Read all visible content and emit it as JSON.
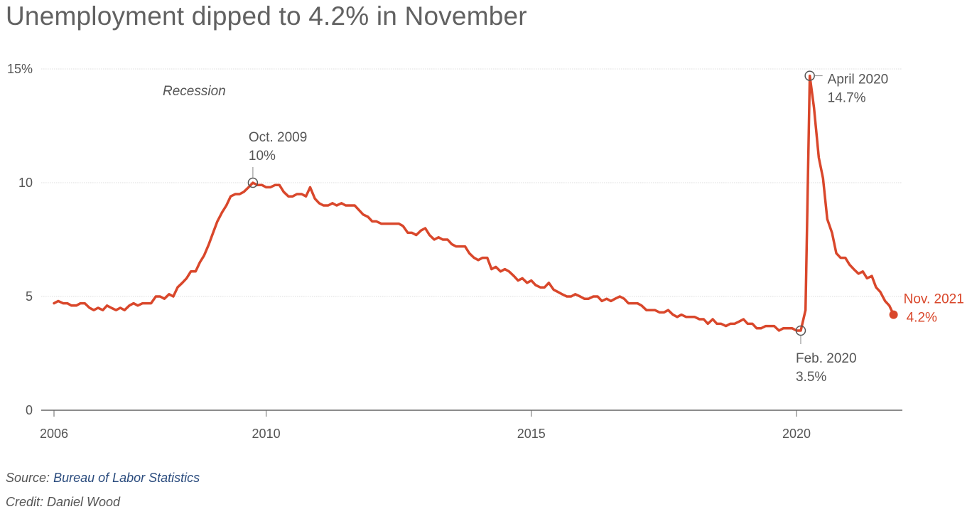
{
  "page": {
    "title": "Unemployment dipped to 4.2% in November",
    "source_prefix": "Source:",
    "source_link": "Bureau of Labor Statistics",
    "credit": "Credit: Daniel Wood"
  },
  "colors": {
    "line": "#d9472b",
    "annotation_text": "#555555",
    "highlight_text": "#d9472b",
    "grid": "#dddddd",
    "axis": "#666666",
    "source_link": "#2b4c7e"
  },
  "chart_data": {
    "type": "line",
    "title": "Unemployment dipped to 4.2% in November",
    "xlabel": "",
    "ylabel": "",
    "xlim": [
      2006,
      2022.1
    ],
    "ylim": [
      0,
      15
    ],
    "grid": true,
    "x_ticks": [
      {
        "value": 2006,
        "label": "2006"
      },
      {
        "value": 2010,
        "label": "2010"
      },
      {
        "value": 2015,
        "label": "2015"
      },
      {
        "value": 2020,
        "label": "2020"
      }
    ],
    "y_ticks": [
      {
        "value": 0,
        "label": "0"
      },
      {
        "value": 5,
        "label": "5"
      },
      {
        "value": 10,
        "label": "10"
      },
      {
        "value": 15,
        "label": "15%"
      }
    ],
    "shaded_label": "Recession",
    "series": [
      {
        "values": [
          [
            2006.0,
            4.7
          ],
          [
            2006.08,
            4.8
          ],
          [
            2006.17,
            4.7
          ],
          [
            2006.25,
            4.7
          ],
          [
            2006.33,
            4.6
          ],
          [
            2006.42,
            4.6
          ],
          [
            2006.5,
            4.7
          ],
          [
            2006.58,
            4.7
          ],
          [
            2006.67,
            4.5
          ],
          [
            2006.75,
            4.4
          ],
          [
            2006.83,
            4.5
          ],
          [
            2006.92,
            4.4
          ],
          [
            2007.0,
            4.6
          ],
          [
            2007.08,
            4.5
          ],
          [
            2007.17,
            4.4
          ],
          [
            2007.25,
            4.5
          ],
          [
            2007.33,
            4.4
          ],
          [
            2007.42,
            4.6
          ],
          [
            2007.5,
            4.7
          ],
          [
            2007.58,
            4.6
          ],
          [
            2007.67,
            4.7
          ],
          [
            2007.75,
            4.7
          ],
          [
            2007.83,
            4.7
          ],
          [
            2007.92,
            5.0
          ],
          [
            2008.0,
            5.0
          ],
          [
            2008.08,
            4.9
          ],
          [
            2008.17,
            5.1
          ],
          [
            2008.25,
            5.0
          ],
          [
            2008.33,
            5.4
          ],
          [
            2008.42,
            5.6
          ],
          [
            2008.5,
            5.8
          ],
          [
            2008.58,
            6.1
          ],
          [
            2008.67,
            6.1
          ],
          [
            2008.75,
            6.5
          ],
          [
            2008.83,
            6.8
          ],
          [
            2008.92,
            7.3
          ],
          [
            2009.0,
            7.8
          ],
          [
            2009.08,
            8.3
          ],
          [
            2009.17,
            8.7
          ],
          [
            2009.25,
            9.0
          ],
          [
            2009.33,
            9.4
          ],
          [
            2009.42,
            9.5
          ],
          [
            2009.5,
            9.5
          ],
          [
            2009.58,
            9.6
          ],
          [
            2009.67,
            9.8
          ],
          [
            2009.75,
            10.0
          ],
          [
            2009.83,
            9.9
          ],
          [
            2009.92,
            9.9
          ],
          [
            2010.0,
            9.8
          ],
          [
            2010.08,
            9.8
          ],
          [
            2010.17,
            9.9
          ],
          [
            2010.25,
            9.9
          ],
          [
            2010.33,
            9.6
          ],
          [
            2010.42,
            9.4
          ],
          [
            2010.5,
            9.4
          ],
          [
            2010.58,
            9.5
          ],
          [
            2010.67,
            9.5
          ],
          [
            2010.75,
            9.4
          ],
          [
            2010.83,
            9.8
          ],
          [
            2010.92,
            9.3
          ],
          [
            2011.0,
            9.1
          ],
          [
            2011.08,
            9.0
          ],
          [
            2011.17,
            9.0
          ],
          [
            2011.25,
            9.1
          ],
          [
            2011.33,
            9.0
          ],
          [
            2011.42,
            9.1
          ],
          [
            2011.5,
            9.0
          ],
          [
            2011.58,
            9.0
          ],
          [
            2011.67,
            9.0
          ],
          [
            2011.75,
            8.8
          ],
          [
            2011.83,
            8.6
          ],
          [
            2011.92,
            8.5
          ],
          [
            2012.0,
            8.3
          ],
          [
            2012.08,
            8.3
          ],
          [
            2012.17,
            8.2
          ],
          [
            2012.25,
            8.2
          ],
          [
            2012.33,
            8.2
          ],
          [
            2012.42,
            8.2
          ],
          [
            2012.5,
            8.2
          ],
          [
            2012.58,
            8.1
          ],
          [
            2012.67,
            7.8
          ],
          [
            2012.75,
            7.8
          ],
          [
            2012.83,
            7.7
          ],
          [
            2012.92,
            7.9
          ],
          [
            2013.0,
            8.0
          ],
          [
            2013.08,
            7.7
          ],
          [
            2013.17,
            7.5
          ],
          [
            2013.25,
            7.6
          ],
          [
            2013.33,
            7.5
          ],
          [
            2013.42,
            7.5
          ],
          [
            2013.5,
            7.3
          ],
          [
            2013.58,
            7.2
          ],
          [
            2013.67,
            7.2
          ],
          [
            2013.75,
            7.2
          ],
          [
            2013.83,
            6.9
          ],
          [
            2013.92,
            6.7
          ],
          [
            2014.0,
            6.6
          ],
          [
            2014.08,
            6.7
          ],
          [
            2014.17,
            6.7
          ],
          [
            2014.25,
            6.2
          ],
          [
            2014.33,
            6.3
          ],
          [
            2014.42,
            6.1
          ],
          [
            2014.5,
            6.2
          ],
          [
            2014.58,
            6.1
          ],
          [
            2014.67,
            5.9
          ],
          [
            2014.75,
            5.7
          ],
          [
            2014.83,
            5.8
          ],
          [
            2014.92,
            5.6
          ],
          [
            2015.0,
            5.7
          ],
          [
            2015.08,
            5.5
          ],
          [
            2015.17,
            5.4
          ],
          [
            2015.25,
            5.4
          ],
          [
            2015.33,
            5.6
          ],
          [
            2015.42,
            5.3
          ],
          [
            2015.5,
            5.2
          ],
          [
            2015.58,
            5.1
          ],
          [
            2015.67,
            5.0
          ],
          [
            2015.75,
            5.0
          ],
          [
            2015.83,
            5.1
          ],
          [
            2015.92,
            5.0
          ],
          [
            2016.0,
            4.9
          ],
          [
            2016.08,
            4.9
          ],
          [
            2016.17,
            5.0
          ],
          [
            2016.25,
            5.0
          ],
          [
            2016.33,
            4.8
          ],
          [
            2016.42,
            4.9
          ],
          [
            2016.5,
            4.8
          ],
          [
            2016.58,
            4.9
          ],
          [
            2016.67,
            5.0
          ],
          [
            2016.75,
            4.9
          ],
          [
            2016.83,
            4.7
          ],
          [
            2016.92,
            4.7
          ],
          [
            2017.0,
            4.7
          ],
          [
            2017.08,
            4.6
          ],
          [
            2017.17,
            4.4
          ],
          [
            2017.25,
            4.4
          ],
          [
            2017.33,
            4.4
          ],
          [
            2017.42,
            4.3
          ],
          [
            2017.5,
            4.3
          ],
          [
            2017.58,
            4.4
          ],
          [
            2017.67,
            4.2
          ],
          [
            2017.75,
            4.1
          ],
          [
            2017.83,
            4.2
          ],
          [
            2017.92,
            4.1
          ],
          [
            2018.0,
            4.1
          ],
          [
            2018.08,
            4.1
          ],
          [
            2018.17,
            4.0
          ],
          [
            2018.25,
            4.0
          ],
          [
            2018.33,
            3.8
          ],
          [
            2018.42,
            4.0
          ],
          [
            2018.5,
            3.8
          ],
          [
            2018.58,
            3.8
          ],
          [
            2018.67,
            3.7
          ],
          [
            2018.75,
            3.8
          ],
          [
            2018.83,
            3.8
          ],
          [
            2018.92,
            3.9
          ],
          [
            2019.0,
            4.0
          ],
          [
            2019.08,
            3.8
          ],
          [
            2019.17,
            3.8
          ],
          [
            2019.25,
            3.6
          ],
          [
            2019.33,
            3.6
          ],
          [
            2019.42,
            3.7
          ],
          [
            2019.5,
            3.7
          ],
          [
            2019.58,
            3.7
          ],
          [
            2019.67,
            3.5
          ],
          [
            2019.75,
            3.6
          ],
          [
            2019.83,
            3.6
          ],
          [
            2019.92,
            3.6
          ],
          [
            2020.0,
            3.5
          ],
          [
            2020.08,
            3.5
          ],
          [
            2020.17,
            4.4
          ],
          [
            2020.25,
            14.7
          ],
          [
            2020.33,
            13.3
          ],
          [
            2020.42,
            11.1
          ],
          [
            2020.5,
            10.2
          ],
          [
            2020.58,
            8.4
          ],
          [
            2020.67,
            7.8
          ],
          [
            2020.75,
            6.9
          ],
          [
            2020.83,
            6.7
          ],
          [
            2020.92,
            6.7
          ],
          [
            2021.0,
            6.4
          ],
          [
            2021.08,
            6.2
          ],
          [
            2021.17,
            6.0
          ],
          [
            2021.25,
            6.1
          ],
          [
            2021.33,
            5.8
          ],
          [
            2021.42,
            5.9
          ],
          [
            2021.5,
            5.4
          ],
          [
            2021.58,
            5.2
          ],
          [
            2021.67,
            4.8
          ],
          [
            2021.75,
            4.6
          ],
          [
            2021.83,
            4.2
          ]
        ]
      }
    ],
    "annotations": [
      {
        "x": 2009.75,
        "y": 10.0,
        "date": "Oct. 2009",
        "value": "10%",
        "marker": "open",
        "placement": "above-right"
      },
      {
        "x": 2020.25,
        "y": 14.7,
        "date": "April 2020",
        "value": "14.7%",
        "marker": "open",
        "placement": "right"
      },
      {
        "x": 2020.08,
        "y": 3.5,
        "date": "Feb. 2020",
        "value": "3.5%",
        "marker": "open",
        "placement": "below"
      },
      {
        "x": 2021.83,
        "y": 4.2,
        "date": "Nov. 2021",
        "value": "4.2%",
        "marker": "filled",
        "placement": "right-highlight"
      }
    ]
  }
}
